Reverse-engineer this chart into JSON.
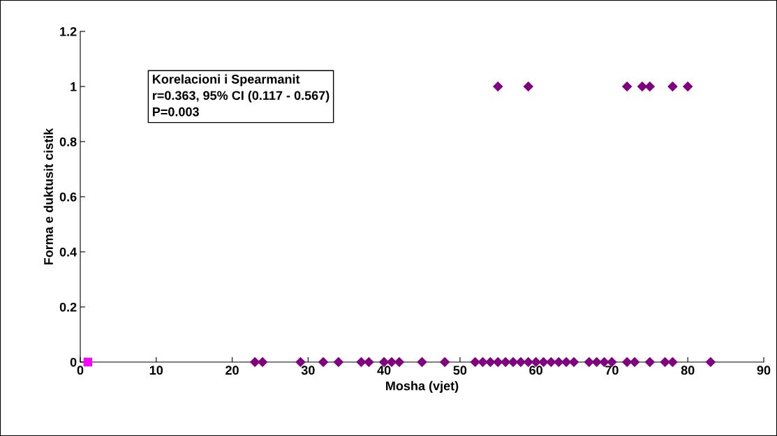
{
  "chart_data": {
    "type": "scatter",
    "xlabel": "Mosha (vjet)",
    "ylabel": "Forma e duktusit cistik",
    "annotations": [
      "Korelacioni i Spearmanit\nr=0.363, 95% CI (0.117 - 0.567)\nP=0.003"
    ],
    "series": [
      {
        "color": "#800080",
        "marker": "diamond",
        "x": [
          23,
          24,
          29,
          32,
          34,
          37,
          38,
          40,
          41,
          42,
          45,
          48,
          52,
          53,
          54,
          55,
          56,
          57,
          58,
          59,
          60,
          61,
          62,
          63,
          64,
          65,
          67,
          68,
          69,
          70,
          72,
          73,
          75,
          77,
          78,
          83,
          55,
          59,
          72,
          74,
          75,
          78,
          80
        ],
        "values": [
          0,
          0,
          0,
          0,
          0,
          0,
          0,
          0,
          0,
          0,
          0,
          0,
          0,
          0,
          0,
          0,
          0,
          0,
          0,
          0,
          0,
          0,
          0,
          0,
          0,
          0,
          0,
          0,
          0,
          0,
          0,
          0,
          0,
          0,
          0,
          0,
          1,
          1,
          1,
          1,
          1,
          1,
          1
        ]
      },
      {
        "color": "#ff00ff",
        "marker": "square",
        "x": [
          1
        ],
        "values": [
          0
        ]
      }
    ],
    "xlim": [
      0,
      90
    ],
    "xticks": [
      0,
      10,
      20,
      30,
      40,
      50,
      60,
      70,
      80,
      90
    ],
    "ylim": [
      0,
      1.2
    ],
    "yticks": [
      0,
      0.2,
      0.4,
      0.6,
      0.8,
      1,
      1.2
    ],
    "grid": false,
    "legend": false
  }
}
